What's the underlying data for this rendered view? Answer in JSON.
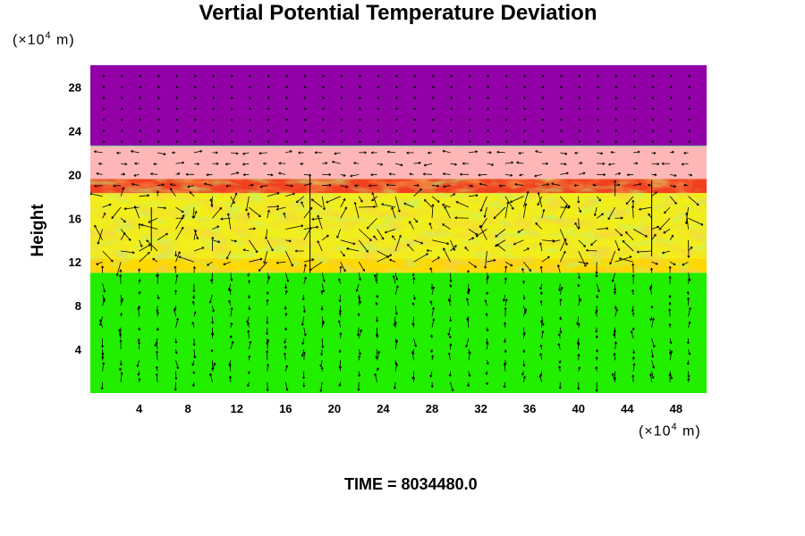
{
  "chart_data": {
    "type": "heatmap",
    "title": "Vertial Potential Temperature Deviation",
    "ylabel": "Height",
    "xlabel": "",
    "x_unit": "(×10^4 m)",
    "y_unit": "(×10^4 m)",
    "x_unit_parts": {
      "pre": "(×10",
      "exp": "4",
      "post": " m)"
    },
    "y_unit_parts": {
      "pre": "(×10",
      "exp": "4",
      "post": " m)"
    },
    "xlim": [
      0,
      50.5
    ],
    "ylim": [
      0,
      30
    ],
    "x_ticks": [
      4,
      8,
      12,
      16,
      20,
      24,
      28,
      32,
      36,
      40,
      44,
      48
    ],
    "y_ticks": [
      4,
      8,
      12,
      16,
      20,
      24,
      28
    ],
    "grid": false,
    "overlay": "wind vector arrows",
    "layers": [
      {
        "from": 0,
        "to": 11,
        "color": "#22ee00"
      },
      {
        "from": 11,
        "to": 12.3,
        "color": "#ffd800"
      },
      {
        "from": 12.3,
        "to": 18.3,
        "color": "#f2ee1a"
      },
      {
        "from": 18.3,
        "to": 19.6,
        "color": "#f04020"
      },
      {
        "from": 19.6,
        "to": 22.6,
        "color": "#ffb6b6"
      },
      {
        "from": 22.6,
        "to": 30,
        "color": "#9300a8"
      }
    ],
    "time_label": "TIME = 8034480.0"
  }
}
